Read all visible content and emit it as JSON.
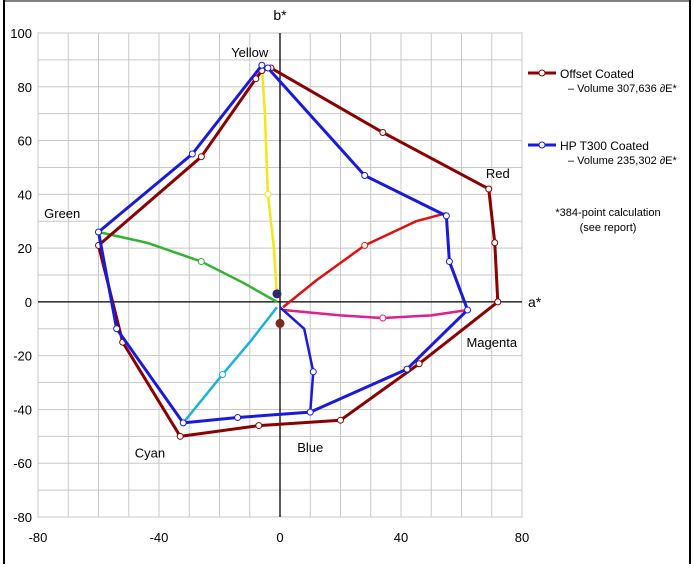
{
  "chart_data": {
    "type": "scatter",
    "xlabel": "a*",
    "ylabel": "b*",
    "xlim": [
      -80,
      80
    ],
    "ylim": [
      -80,
      100
    ],
    "xticks": [
      -80,
      -40,
      0,
      40,
      80
    ],
    "yticks": [
      -80,
      -60,
      -40,
      -20,
      0,
      20,
      40,
      60,
      80,
      100
    ],
    "grid": true,
    "legend_position": "right",
    "footnote": [
      "*384-point calculation",
      "(see report)"
    ],
    "annotations": [
      {
        "text": "Yellow",
        "x": -10,
        "y": 93
      },
      {
        "text": "Red",
        "x": 72,
        "y": 48
      },
      {
        "text": "Green",
        "x": -72,
        "y": 33
      },
      {
        "text": "Magenta",
        "x": 70,
        "y": -15
      },
      {
        "text": "Cyan",
        "x": -43,
        "y": -56
      },
      {
        "text": "Blue",
        "x": 10,
        "y": -54
      }
    ],
    "series": [
      {
        "name": "Offset Coated",
        "legend_line1": "Offset Coated",
        "legend_line2": "– Volume 307,636 ∂E*",
        "color": "#8b0000",
        "points": [
          [
            -6,
            86
          ],
          [
            -8,
            83
          ],
          [
            -26,
            54
          ],
          [
            -60,
            21
          ],
          [
            -52,
            -15
          ],
          [
            -33,
            -50
          ],
          [
            -7,
            -46
          ],
          [
            20,
            -44
          ],
          [
            46,
            -23
          ],
          [
            72,
            0
          ],
          [
            71,
            22
          ],
          [
            69,
            42
          ],
          [
            34,
            63
          ],
          [
            -3,
            87
          ]
        ]
      },
      {
        "name": "HP T300 Coated",
        "legend_line1": "HP T300 Coated",
        "legend_line2": "– Volume 235,302 ∂E*",
        "color": "#1a1adc",
        "points": [
          [
            -6,
            88
          ],
          [
            -29,
            55
          ],
          [
            -60,
            26
          ],
          [
            -54,
            -10
          ],
          [
            -32,
            -45
          ],
          [
            -14,
            -43
          ],
          [
            10,
            -41
          ],
          [
            42,
            -25
          ],
          [
            62,
            -3
          ],
          [
            56,
            15
          ],
          [
            55,
            32
          ],
          [
            28,
            47
          ],
          [
            -4,
            87
          ]
        ]
      }
    ],
    "hue_curves": [
      {
        "color": "#f5e61a",
        "points": [
          [
            -6,
            88
          ],
          [
            -5,
            70
          ],
          [
            -4,
            40
          ],
          [
            -2,
            20
          ],
          [
            -1,
            2
          ]
        ]
      },
      {
        "color": "#dd1111",
        "points": [
          [
            1,
            -2
          ],
          [
            12,
            8
          ],
          [
            28,
            21
          ],
          [
            45,
            30
          ],
          [
            55,
            33
          ]
        ]
      },
      {
        "color": "#33b233",
        "points": [
          [
            -60,
            26
          ],
          [
            -44,
            22
          ],
          [
            -26,
            15
          ],
          [
            -12,
            7
          ],
          [
            -1,
            0
          ]
        ]
      },
      {
        "color": "#e01e8c",
        "points": [
          [
            1,
            -3
          ],
          [
            20,
            -5
          ],
          [
            34,
            -6
          ],
          [
            50,
            -5
          ],
          [
            62,
            -3
          ]
        ]
      },
      {
        "color": "#1ab0e0",
        "points": [
          [
            -1,
            -2
          ],
          [
            -10,
            -15
          ],
          [
            -19,
            -27
          ],
          [
            -32,
            -45
          ]
        ]
      },
      {
        "color": "#1a1adc",
        "points": [
          [
            0,
            -2
          ],
          [
            8,
            -10
          ],
          [
            11,
            -26
          ],
          [
            10,
            -41
          ]
        ]
      }
    ],
    "gray_points": [
      {
        "color": "#2a2a6a",
        "x": -1,
        "y": 3
      },
      {
        "color": "#7a2a1a",
        "x": 0,
        "y": -8
      }
    ]
  }
}
